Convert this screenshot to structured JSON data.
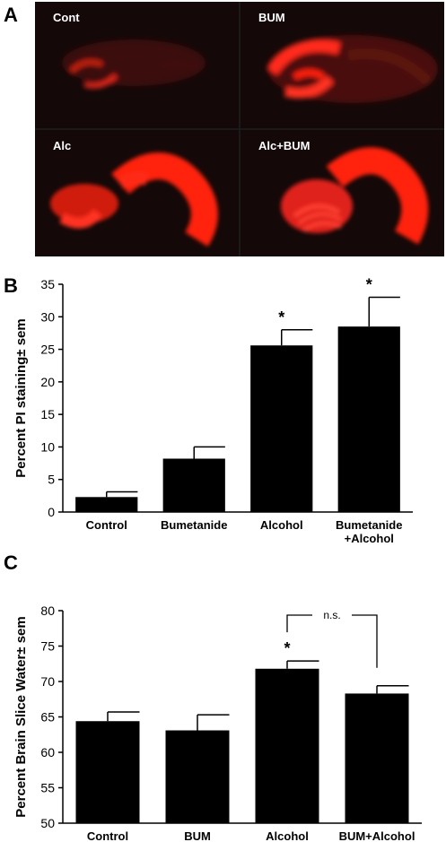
{
  "panels": {
    "a": "A",
    "b": "B",
    "c": "C"
  },
  "micrographs": [
    {
      "label": "Cont",
      "intensity": "low"
    },
    {
      "label": "BUM",
      "intensity": "moderate"
    },
    {
      "label": "Alc",
      "intensity": "high"
    },
    {
      "label": "Alc+BUM",
      "intensity": "high"
    }
  ],
  "colors": {
    "bar": "#000000",
    "stain": "#ff2010",
    "background": "#140808"
  },
  "chart_data": [
    {
      "panel": "B",
      "type": "bar",
      "categories": [
        "Control",
        "Bumetanide",
        "Alcohol",
        "Bumetanide+Alcohol"
      ],
      "category_lines": [
        [
          "Control"
        ],
        [
          "Bumetanide"
        ],
        [
          "Alcohol"
        ],
        [
          "Bumetanide",
          "+Alcohol"
        ]
      ],
      "values": [
        2.3,
        8.2,
        25.6,
        28.5
      ],
      "errors": [
        0.8,
        1.8,
        2.4,
        4.5
      ],
      "significance": [
        "",
        "",
        "*",
        "*"
      ],
      "ylabel": "Percent PI staining± sem",
      "ylim": [
        0,
        35
      ],
      "yticks": [
        0,
        5,
        10,
        15,
        20,
        25,
        30,
        35
      ]
    },
    {
      "panel": "C",
      "type": "bar",
      "categories": [
        "Control",
        "BUM",
        "Alcohol",
        "BUM+Alcohol"
      ],
      "values": [
        64.4,
        63.1,
        71.8,
        68.3
      ],
      "errors": [
        1.3,
        2.2,
        1.1,
        1.1
      ],
      "significance": [
        "",
        "",
        "*",
        ""
      ],
      "comparison": {
        "from": 2,
        "to": 3,
        "label": "n.s."
      },
      "ylabel": "Percent Brain Slice Water± sem",
      "ylim": [
        50,
        80
      ],
      "yticks": [
        50,
        55,
        60,
        65,
        70,
        75,
        80
      ]
    }
  ]
}
